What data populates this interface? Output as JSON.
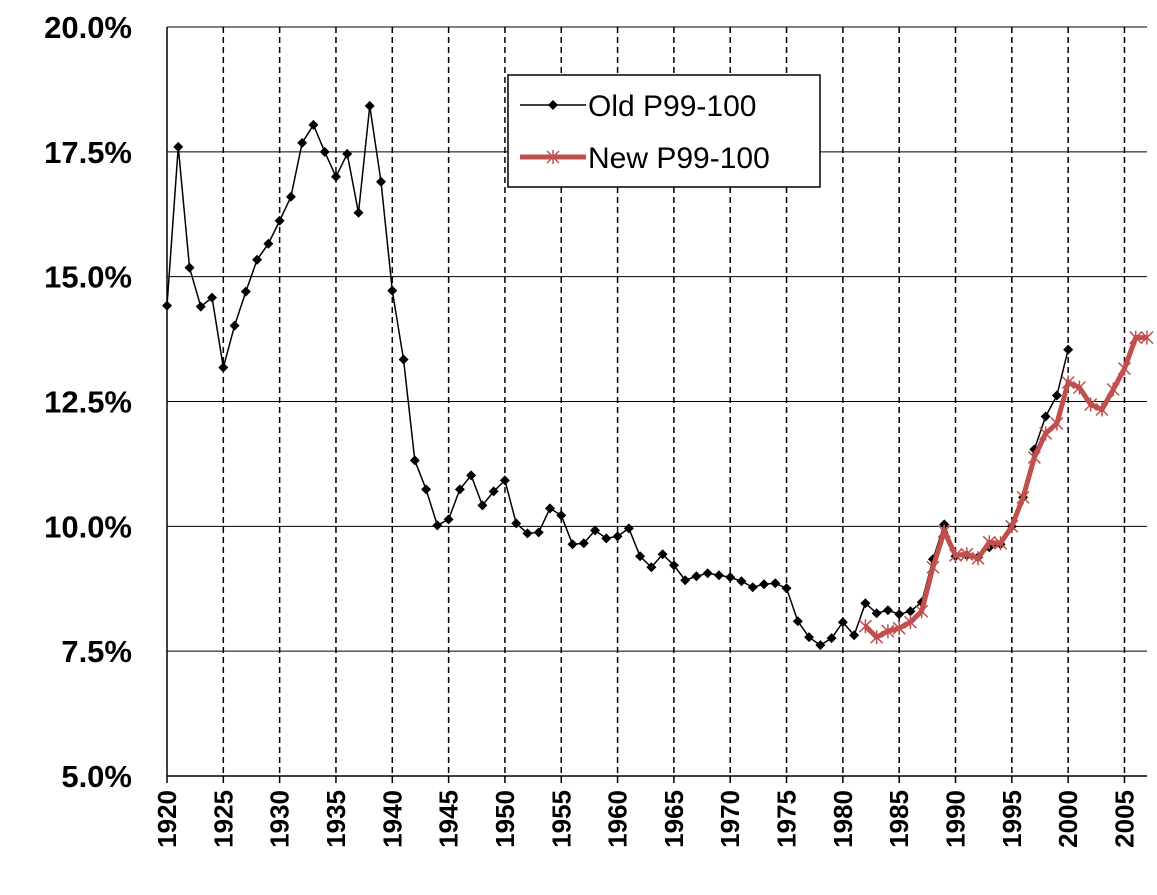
{
  "chart_data": {
    "type": "line",
    "xlim": [
      1920,
      2007
    ],
    "ylim": [
      5,
      20
    ],
    "xticks": [
      1920,
      1925,
      1930,
      1935,
      1940,
      1945,
      1950,
      1955,
      1960,
      1965,
      1970,
      1975,
      1980,
      1985,
      1990,
      1995,
      2000,
      2005
    ],
    "yticks": [
      {
        "value": 5,
        "label": "5.0%"
      },
      {
        "value": 7.5,
        "label": "7.5%"
      },
      {
        "value": 10,
        "label": "10.0%"
      },
      {
        "value": 12.5,
        "label": "12.5%"
      },
      {
        "value": 15,
        "label": "15.0%"
      },
      {
        "value": 17.5,
        "label": "17.5%"
      },
      {
        "value": 20,
        "label": "20.0%"
      }
    ],
    "grid": true,
    "legend": "upper center",
    "series": [
      {
        "name": "Old P99-100",
        "color": "#000000",
        "marker": "diamond",
        "x": [
          1920,
          1921,
          1922,
          1923,
          1924,
          1925,
          1926,
          1927,
          1928,
          1929,
          1930,
          1931,
          1932,
          1933,
          1934,
          1935,
          1936,
          1937,
          1938,
          1939,
          1940,
          1941,
          1942,
          1943,
          1944,
          1945,
          1946,
          1947,
          1948,
          1949,
          1950,
          1951,
          1952,
          1953,
          1954,
          1955,
          1956,
          1957,
          1958,
          1959,
          1960,
          1961,
          1962,
          1963,
          1964,
          1965,
          1966,
          1967,
          1968,
          1969,
          1970,
          1971,
          1972,
          1973,
          1974,
          1975,
          1976,
          1977,
          1978,
          1979,
          1980,
          1981,
          1982,
          1983,
          1984,
          1985,
          1986,
          1987,
          1988,
          1989,
          1990,
          1991,
          1992,
          1993,
          1994,
          1995,
          1996,
          1997,
          1998,
          1999,
          2000
        ],
        "values": [
          14.42,
          17.6,
          15.18,
          14.4,
          14.58,
          13.18,
          14.02,
          14.7,
          15.34,
          15.66,
          16.12,
          16.6,
          17.68,
          18.04,
          17.5,
          17.0,
          17.46,
          16.28,
          18.42,
          16.9,
          14.72,
          13.34,
          11.32,
          10.74,
          10.02,
          10.14,
          10.74,
          11.02,
          10.42,
          10.7,
          10.92,
          10.06,
          9.86,
          9.88,
          10.36,
          10.22,
          9.64,
          9.66,
          9.92,
          9.76,
          9.8,
          9.96,
          9.4,
          9.18,
          9.44,
          9.22,
          8.92,
          9.0,
          9.06,
          9.02,
          8.98,
          8.9,
          8.78,
          8.84,
          8.86,
          8.76,
          8.1,
          7.78,
          7.62,
          7.76,
          8.08,
          7.82,
          8.46,
          8.26,
          8.32,
          8.24,
          8.3,
          8.48,
          9.34,
          10.04,
          9.4,
          9.42,
          9.38,
          9.58,
          9.64,
          10.0,
          10.58,
          11.54,
          12.2,
          12.62,
          13.54
        ]
      },
      {
        "name": "New P99-100",
        "color": "#c0504d",
        "marker": "asterisk",
        "x": [
          1982,
          1983,
          1984,
          1985,
          1986,
          1987,
          1988,
          1989,
          1990,
          1991,
          1992,
          1993,
          1994,
          1995,
          1996,
          1997,
          1998,
          1999,
          2000,
          2001,
          2002,
          2003,
          2004,
          2005,
          2006,
          2007
        ],
        "values": [
          8.0,
          7.78,
          7.9,
          7.96,
          8.08,
          8.3,
          9.18,
          9.9,
          9.42,
          9.44,
          9.36,
          9.68,
          9.66,
          10.0,
          10.58,
          11.38,
          11.86,
          12.06,
          12.88,
          12.78,
          12.44,
          12.34,
          12.74,
          13.16,
          13.78,
          13.78
        ]
      }
    ]
  }
}
